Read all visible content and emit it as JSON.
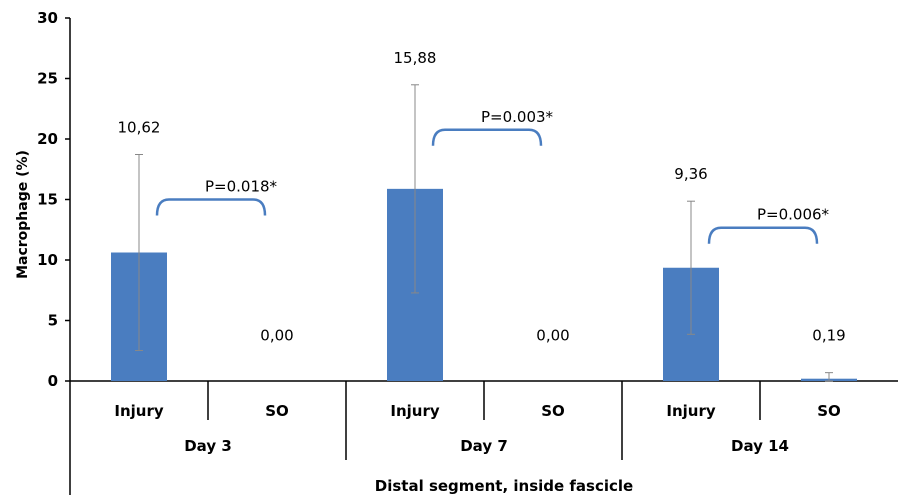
{
  "chart_data": {
    "type": "bar",
    "ylabel": "Macrophage (%)",
    "xlabel": "Distal segment, inside fascicle",
    "ylim": [
      0,
      30
    ],
    "yticks": [
      0,
      5,
      10,
      15,
      20,
      25,
      30
    ],
    "bar_color": "#4a7dc0",
    "bracket_color": "#4a7dc0",
    "groups": [
      {
        "label": "Day 3",
        "bars": [
          {
            "category": "Injury",
            "value": 10.62,
            "value_label": "10,62",
            "err": 8.1
          },
          {
            "category": "SO",
            "value": 0.0,
            "value_label": "0,00",
            "err": 0
          }
        ],
        "p_value": "P=0.018*"
      },
      {
        "label": "Day 7",
        "bars": [
          {
            "category": "Injury",
            "value": 15.88,
            "value_label": "15,88",
            "err": 8.6
          },
          {
            "category": "SO",
            "value": 0.0,
            "value_label": "0,00",
            "err": 0
          }
        ],
        "p_value": "P=0.003*"
      },
      {
        "label": "Day 14",
        "bars": [
          {
            "category": "Injury",
            "value": 9.36,
            "value_label": "9,36",
            "err": 5.5
          },
          {
            "category": "SO",
            "value": 0.19,
            "value_label": "0,19",
            "err": 0.5
          }
        ],
        "p_value": "P=0.006*"
      }
    ]
  }
}
